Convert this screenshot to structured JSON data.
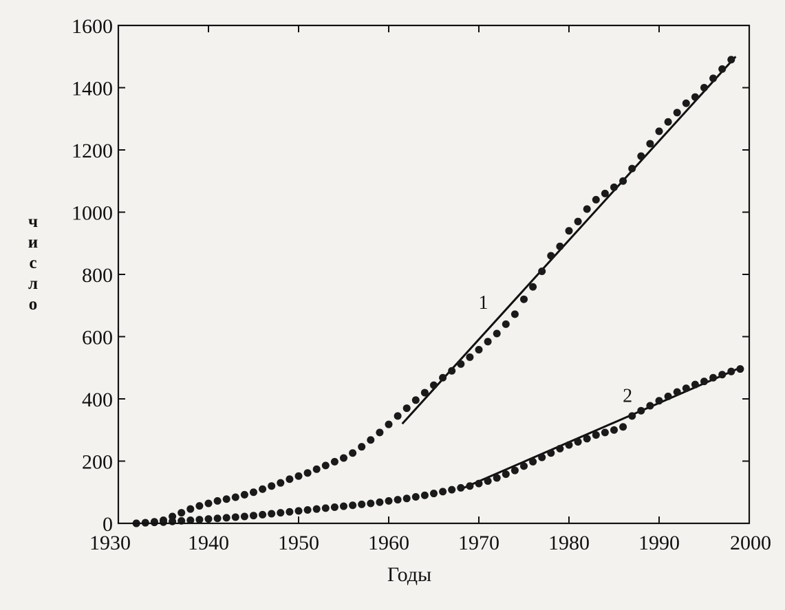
{
  "chart_data": {
    "type": "scatter",
    "title": "",
    "xlabel": "Годы",
    "ylabel": "число",
    "xlim": [
      1930,
      2000
    ],
    "ylim": [
      0,
      1600
    ],
    "x_ticks": [
      1930,
      1940,
      1950,
      1960,
      1970,
      1980,
      1990,
      2000
    ],
    "y_ticks": [
      0,
      200,
      400,
      600,
      800,
      1000,
      1200,
      1400,
      1600
    ],
    "grid": false,
    "legend": "none",
    "annotations": [
      {
        "label": "1",
        "x": 1970.5,
        "y": 690
      },
      {
        "label": "2",
        "x": 1986.5,
        "y": 390
      }
    ],
    "series": [
      {
        "name": "1",
        "points": [
          [
            1932,
            0
          ],
          [
            1933,
            2
          ],
          [
            1934,
            5
          ],
          [
            1935,
            10
          ],
          [
            1936,
            22
          ],
          [
            1937,
            34
          ],
          [
            1938,
            46
          ],
          [
            1939,
            56
          ],
          [
            1940,
            64
          ],
          [
            1941,
            72
          ],
          [
            1942,
            78
          ],
          [
            1943,
            84
          ],
          [
            1944,
            92
          ],
          [
            1945,
            100
          ],
          [
            1946,
            110
          ],
          [
            1947,
            120
          ],
          [
            1948,
            130
          ],
          [
            1949,
            142
          ],
          [
            1950,
            152
          ],
          [
            1951,
            162
          ],
          [
            1952,
            174
          ],
          [
            1953,
            186
          ],
          [
            1954,
            198
          ],
          [
            1955,
            210
          ],
          [
            1956,
            226
          ],
          [
            1957,
            246
          ],
          [
            1958,
            268
          ],
          [
            1959,
            292
          ],
          [
            1960,
            318
          ],
          [
            1961,
            345
          ],
          [
            1962,
            370
          ],
          [
            1963,
            396
          ],
          [
            1964,
            420
          ],
          [
            1965,
            444
          ],
          [
            1966,
            468
          ],
          [
            1967,
            490
          ],
          [
            1968,
            512
          ],
          [
            1969,
            534
          ],
          [
            1970,
            558
          ],
          [
            1971,
            584
          ],
          [
            1972,
            610
          ],
          [
            1973,
            640
          ],
          [
            1974,
            672
          ],
          [
            1975,
            720
          ],
          [
            1976,
            760
          ],
          [
            1977,
            810
          ],
          [
            1978,
            860
          ],
          [
            1979,
            890
          ],
          [
            1980,
            940
          ],
          [
            1981,
            970
          ],
          [
            1982,
            1010
          ],
          [
            1983,
            1040
          ],
          [
            1984,
            1060
          ],
          [
            1985,
            1080
          ],
          [
            1986,
            1100
          ],
          [
            1987,
            1140
          ],
          [
            1988,
            1180
          ],
          [
            1989,
            1220
          ],
          [
            1990,
            1260
          ],
          [
            1991,
            1290
          ],
          [
            1992,
            1320
          ],
          [
            1993,
            1350
          ],
          [
            1994,
            1370
          ],
          [
            1995,
            1400
          ],
          [
            1996,
            1430
          ],
          [
            1997,
            1460
          ],
          [
            1998,
            1490
          ]
        ],
        "fit_line": [
          [
            1961.5,
            320
          ],
          [
            1998.5,
            1500
          ]
        ]
      },
      {
        "name": "2",
        "points": [
          [
            1932,
            0
          ],
          [
            1933,
            2
          ],
          [
            1934,
            3
          ],
          [
            1935,
            4
          ],
          [
            1936,
            6
          ],
          [
            1937,
            8
          ],
          [
            1938,
            10
          ],
          [
            1939,
            12
          ],
          [
            1940,
            14
          ],
          [
            1941,
            16
          ],
          [
            1942,
            18
          ],
          [
            1943,
            20
          ],
          [
            1944,
            22
          ],
          [
            1945,
            25
          ],
          [
            1946,
            28
          ],
          [
            1947,
            31
          ],
          [
            1948,
            34
          ],
          [
            1949,
            37
          ],
          [
            1950,
            40
          ],
          [
            1951,
            43
          ],
          [
            1952,
            46
          ],
          [
            1953,
            49
          ],
          [
            1954,
            52
          ],
          [
            1955,
            55
          ],
          [
            1956,
            58
          ],
          [
            1957,
            61
          ],
          [
            1958,
            64
          ],
          [
            1959,
            68
          ],
          [
            1960,
            72
          ],
          [
            1961,
            76
          ],
          [
            1962,
            80
          ],
          [
            1963,
            85
          ],
          [
            1964,
            90
          ],
          [
            1965,
            96
          ],
          [
            1966,
            102
          ],
          [
            1967,
            108
          ],
          [
            1968,
            114
          ],
          [
            1969,
            120
          ],
          [
            1970,
            128
          ],
          [
            1971,
            136
          ],
          [
            1972,
            146
          ],
          [
            1973,
            158
          ],
          [
            1974,
            170
          ],
          [
            1975,
            184
          ],
          [
            1976,
            198
          ],
          [
            1977,
            212
          ],
          [
            1978,
            226
          ],
          [
            1979,
            240
          ],
          [
            1980,
            252
          ],
          [
            1981,
            262
          ],
          [
            1982,
            272
          ],
          [
            1983,
            284
          ],
          [
            1984,
            292
          ],
          [
            1985,
            300
          ],
          [
            1986,
            310
          ],
          [
            1987,
            345
          ],
          [
            1988,
            362
          ],
          [
            1989,
            378
          ],
          [
            1990,
            394
          ],
          [
            1991,
            408
          ],
          [
            1992,
            422
          ],
          [
            1993,
            434
          ],
          [
            1994,
            446
          ],
          [
            1995,
            456
          ],
          [
            1996,
            468
          ],
          [
            1997,
            478
          ],
          [
            1998,
            488
          ],
          [
            1999,
            496
          ]
        ],
        "fit_line": [
          [
            1968,
            110
          ],
          [
            1999,
            500
          ]
        ]
      }
    ]
  }
}
